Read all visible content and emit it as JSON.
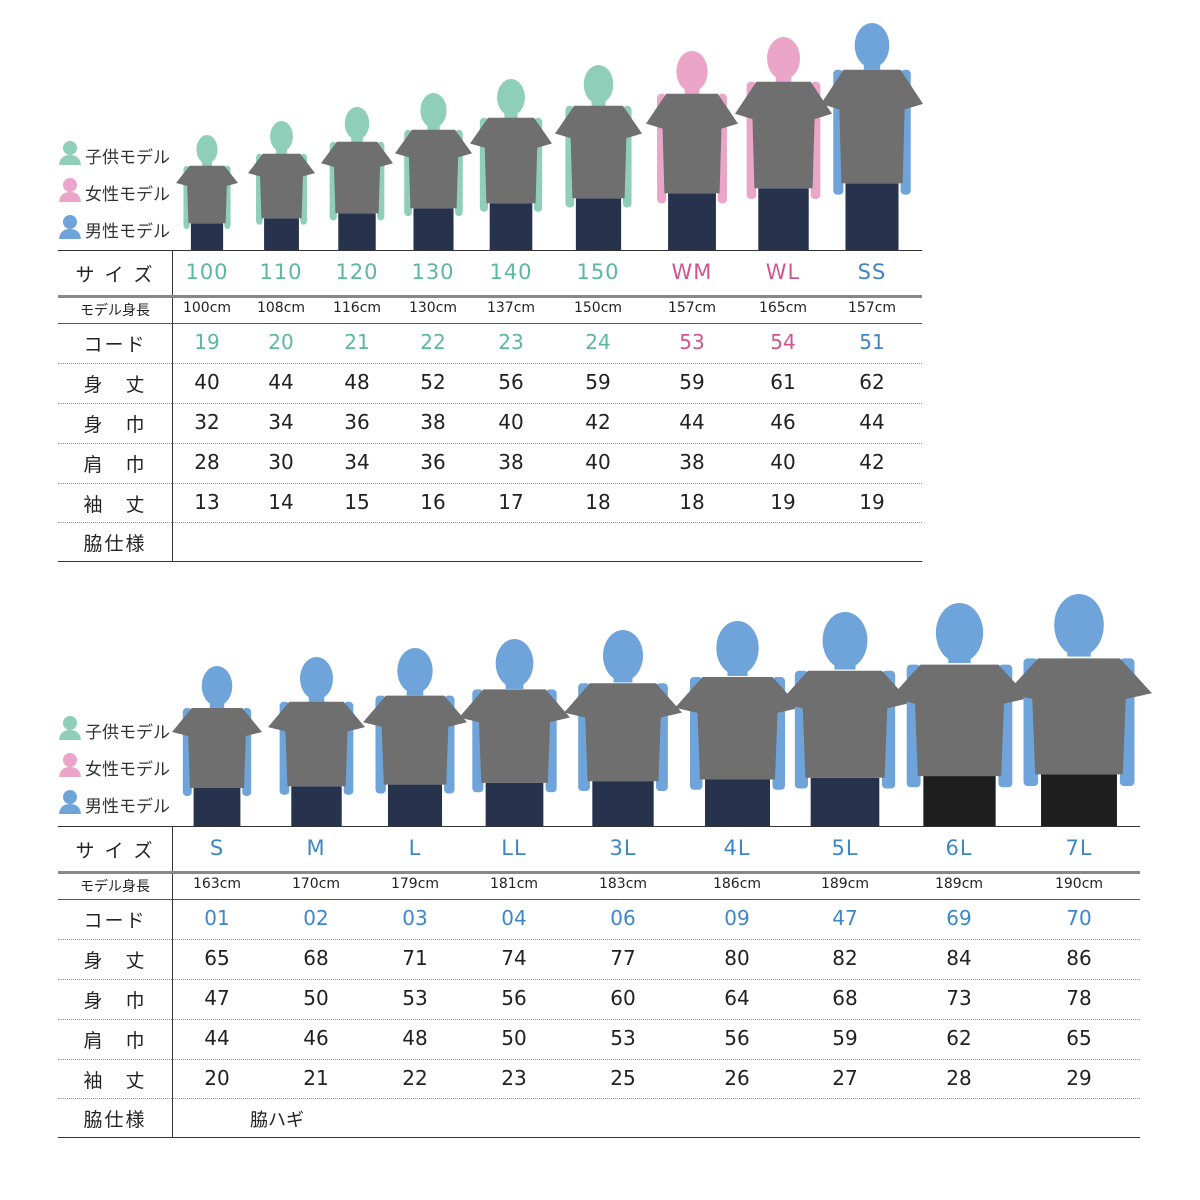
{
  "legend": [
    {
      "label": "子供モデル",
      "color": "#8fcfba"
    },
    {
      "label": "女性モデル",
      "color": "#eaa5c8"
    },
    {
      "label": "男性モデル",
      "color": "#6fa4da"
    }
  ],
  "colors": {
    "kids_text": "#5cb89c",
    "women_text": "#d0558f",
    "men_text": "#3f86c6",
    "shirt": "#6f6f6f",
    "pants": "#27324d"
  },
  "row_labels": {
    "size": "サ イ ズ",
    "model_height": "モデル身長",
    "code": "コード",
    "length": "身　丈",
    "body_width": "身　巾",
    "shoulder": "肩　巾",
    "sleeve": "袖　丈",
    "side": "脇仕様"
  },
  "tables": [
    {
      "columns": [
        {
          "size": "100",
          "model_height": "100cm",
          "code": "19",
          "length": "40",
          "body_width": "32",
          "shoulder": "28",
          "sleeve": "13",
          "type": "kids"
        },
        {
          "size": "110",
          "model_height": "108cm",
          "code": "20",
          "length": "44",
          "body_width": "34",
          "shoulder": "30",
          "sleeve": "14",
          "type": "kids"
        },
        {
          "size": "120",
          "model_height": "116cm",
          "code": "21",
          "length": "48",
          "body_width": "36",
          "shoulder": "34",
          "sleeve": "15",
          "type": "kids"
        },
        {
          "size": "130",
          "model_height": "130cm",
          "code": "22",
          "length": "52",
          "body_width": "38",
          "shoulder": "36",
          "sleeve": "16",
          "type": "kids"
        },
        {
          "size": "140",
          "model_height": "137cm",
          "code": "23",
          "length": "56",
          "body_width": "40",
          "shoulder": "38",
          "sleeve": "17",
          "type": "kids"
        },
        {
          "size": "150",
          "model_height": "150cm",
          "code": "24",
          "length": "59",
          "body_width": "42",
          "shoulder": "40",
          "sleeve": "18",
          "type": "kids"
        },
        {
          "size": "WM",
          "model_height": "157cm",
          "code": "53",
          "length": "59",
          "body_width": "44",
          "shoulder": "38",
          "sleeve": "18",
          "type": "women"
        },
        {
          "size": "WL",
          "model_height": "165cm",
          "code": "54",
          "length": "61",
          "body_width": "46",
          "shoulder": "40",
          "sleeve": "19",
          "type": "women"
        },
        {
          "size": "SS",
          "model_height": "157cm",
          "code": "51",
          "length": "62",
          "body_width": "44",
          "shoulder": "42",
          "sleeve": "19",
          "type": "men"
        }
      ],
      "side": ""
    },
    {
      "columns": [
        {
          "size": "S",
          "model_height": "163cm",
          "code": "01",
          "length": "65",
          "body_width": "47",
          "shoulder": "44",
          "sleeve": "20",
          "type": "men"
        },
        {
          "size": "M",
          "model_height": "170cm",
          "code": "02",
          "length": "68",
          "body_width": "50",
          "shoulder": "46",
          "sleeve": "21",
          "type": "men"
        },
        {
          "size": "L",
          "model_height": "179cm",
          "code": "03",
          "length": "71",
          "body_width": "53",
          "shoulder": "48",
          "sleeve": "22",
          "type": "men"
        },
        {
          "size": "LL",
          "model_height": "181cm",
          "code": "04",
          "length": "74",
          "body_width": "56",
          "shoulder": "50",
          "sleeve": "23",
          "type": "men"
        },
        {
          "size": "3L",
          "model_height": "183cm",
          "code": "06",
          "length": "77",
          "body_width": "60",
          "shoulder": "53",
          "sleeve": "25",
          "type": "men"
        },
        {
          "size": "4L",
          "model_height": "186cm",
          "code": "09",
          "length": "80",
          "body_width": "64",
          "shoulder": "56",
          "sleeve": "26",
          "type": "men"
        },
        {
          "size": "5L",
          "model_height": "189cm",
          "code": "47",
          "length": "82",
          "body_width": "68",
          "shoulder": "59",
          "sleeve": "27",
          "type": "men"
        },
        {
          "size": "6L",
          "model_height": "189cm",
          "code": "69",
          "length": "84",
          "body_width": "73",
          "shoulder": "62",
          "sleeve": "28",
          "type": "men"
        },
        {
          "size": "7L",
          "model_height": "190cm",
          "code": "70",
          "length": "86",
          "body_width": "78",
          "shoulder": "65",
          "sleeve": "29",
          "type": "men"
        }
      ],
      "side": "脇ハギ"
    }
  ]
}
